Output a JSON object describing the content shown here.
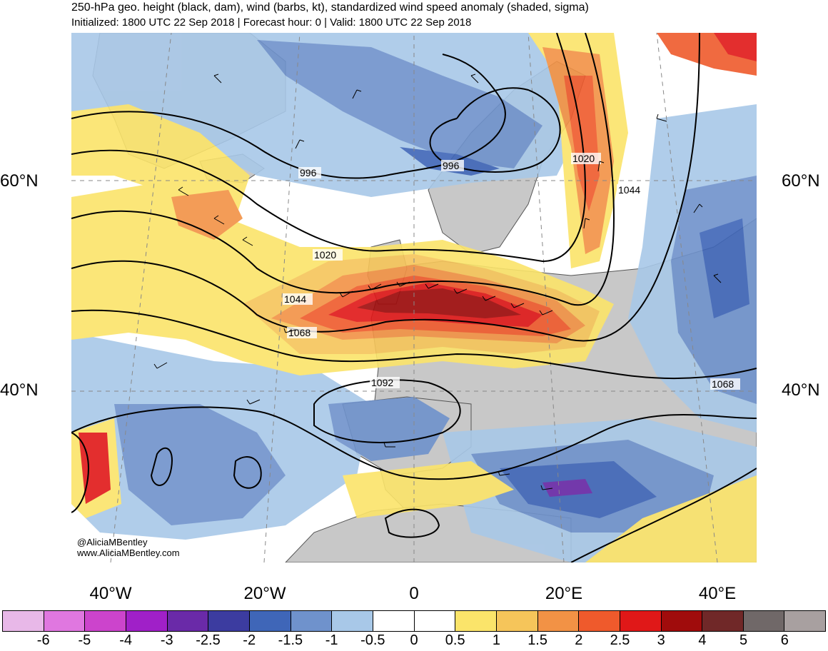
{
  "title": "250-hPa geo. height (black, dam), wind (barbs, kt), standardized wind speed anomaly (shaded, sigma)",
  "subtitle": "Initialized: 1800 UTC 22 Sep 2018 | Forecast hour: 0 | Valid: 1800 UTC 22 Sep 2018",
  "lat_labels": {
    "north60_left": "60°N",
    "north60_right": "60°N",
    "north40_left": "40°N",
    "north40_right": "40°N"
  },
  "lon_labels": [
    "40°W",
    "20°W",
    "0",
    "20°E",
    "40°E"
  ],
  "contour_labels": [
    "996",
    "996",
    "1020",
    "1020",
    "1044",
    "1044",
    "1068",
    "1068",
    "1092"
  ],
  "credit": {
    "handle": "@AliciaMBentley",
    "website": "www.AliciaMBentley.com"
  },
  "colorbar": {
    "colors": [
      "#e8b8e8",
      "#e077e0",
      "#cc44cc",
      "#a020c8",
      "#6a2aa8",
      "#3c3ca0",
      "#3f66b8",
      "#6f92cc",
      "#a8c8e8",
      "#ffffff",
      "#ffffff",
      "#fbe46a",
      "#f6c55a",
      "#f29245",
      "#ef5a2c",
      "#e01818",
      "#a00c0c",
      "#702828",
      "#706868",
      "#a8a0a0"
    ],
    "labels": [
      "-6",
      "-5",
      "-4",
      "-3",
      "-2.5",
      "-2",
      "-1.5",
      "-1",
      "-0.5",
      "0",
      "0.5",
      "1",
      "1.5",
      "2",
      "2.5",
      "3",
      "4",
      "5",
      "6"
    ]
  },
  "shading_colors": {
    "land": "#c8c8c8",
    "ocean": "#ffffff",
    "neg_0_5": "#a8c8e8",
    "neg_1": "#6f92cc",
    "neg_1_5": "#3f66b8",
    "neg_2_5": "#6a2aa8",
    "pos_0_5": "#fbe46a",
    "pos_1": "#f6c55a",
    "pos_1_5": "#f29245",
    "pos_2": "#ef5a2c",
    "pos_2_5": "#e01818",
    "pos_3": "#a00c0c"
  }
}
